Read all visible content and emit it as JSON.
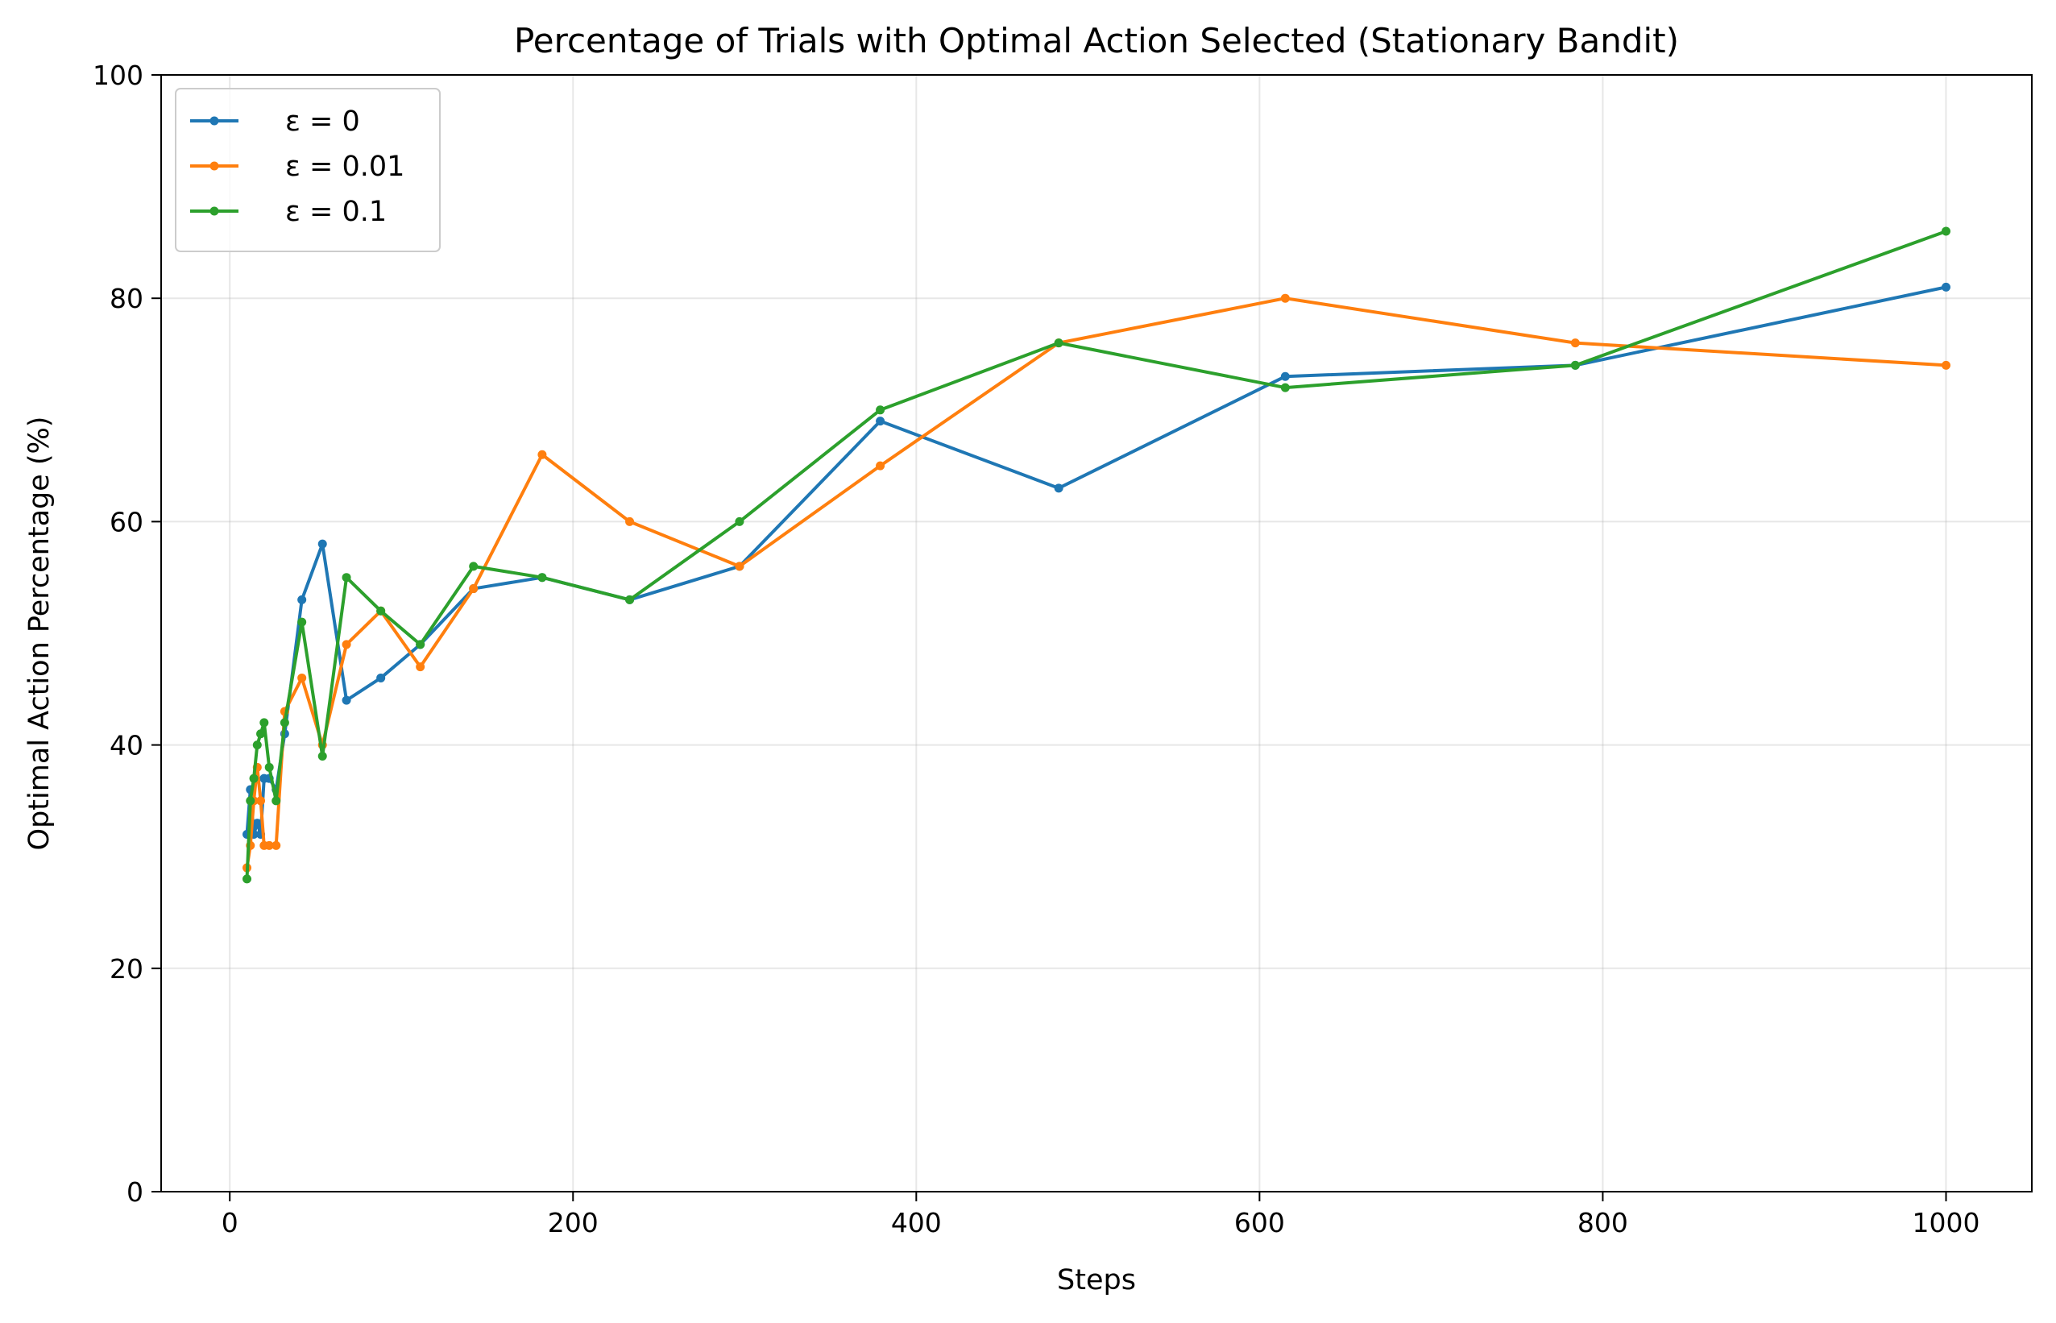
{
  "chart_data": {
    "type": "line",
    "title": "Percentage of Trials with Optimal Action Selected (Stationary Bandit)",
    "xlabel": "Steps",
    "ylabel": "Optimal Action Percentage (%)",
    "xlim": [
      -40,
      1050
    ],
    "ylim": [
      0,
      100
    ],
    "xticks": [
      0,
      200,
      400,
      600,
      800,
      1000
    ],
    "yticks": [
      0,
      20,
      40,
      60,
      80,
      100
    ],
    "grid": true,
    "legend_position": "top-left",
    "series": [
      {
        "name": "ε = 0",
        "color": "#1f77b4",
        "x": [
          10,
          12,
          14,
          16,
          18,
          20,
          23,
          27,
          32,
          42,
          54,
          68,
          88,
          111,
          142,
          182,
          233,
          297,
          379,
          483,
          615,
          784,
          1000
        ],
        "y": [
          32,
          36,
          32,
          33,
          32,
          37,
          37,
          36,
          41,
          53,
          58,
          44,
          46,
          49,
          54,
          55,
          53,
          56,
          69,
          63,
          73,
          74,
          81
        ]
      },
      {
        "name": "ε = 0.01",
        "color": "#ff7f0e",
        "x": [
          10,
          12,
          14,
          16,
          18,
          20,
          23,
          27,
          32,
          42,
          54,
          68,
          88,
          111,
          142,
          182,
          233,
          297,
          379,
          483,
          615,
          784,
          1000
        ],
        "y": [
          29,
          31,
          35,
          38,
          35,
          31,
          31,
          31,
          43,
          46,
          40,
          49,
          52,
          47,
          54,
          66,
          60,
          56,
          65,
          76,
          80,
          76,
          74
        ]
      },
      {
        "name": "ε = 0.1",
        "color": "#2ca02c",
        "x": [
          10,
          12,
          14,
          16,
          18,
          20,
          23,
          27,
          32,
          42,
          54,
          68,
          88,
          111,
          142,
          182,
          233,
          297,
          379,
          483,
          615,
          784,
          1000
        ],
        "y": [
          28,
          35,
          37,
          40,
          41,
          42,
          38,
          35,
          42,
          51,
          39,
          55,
          52,
          49,
          56,
          55,
          53,
          60,
          70,
          76,
          72,
          74,
          86
        ]
      }
    ]
  }
}
